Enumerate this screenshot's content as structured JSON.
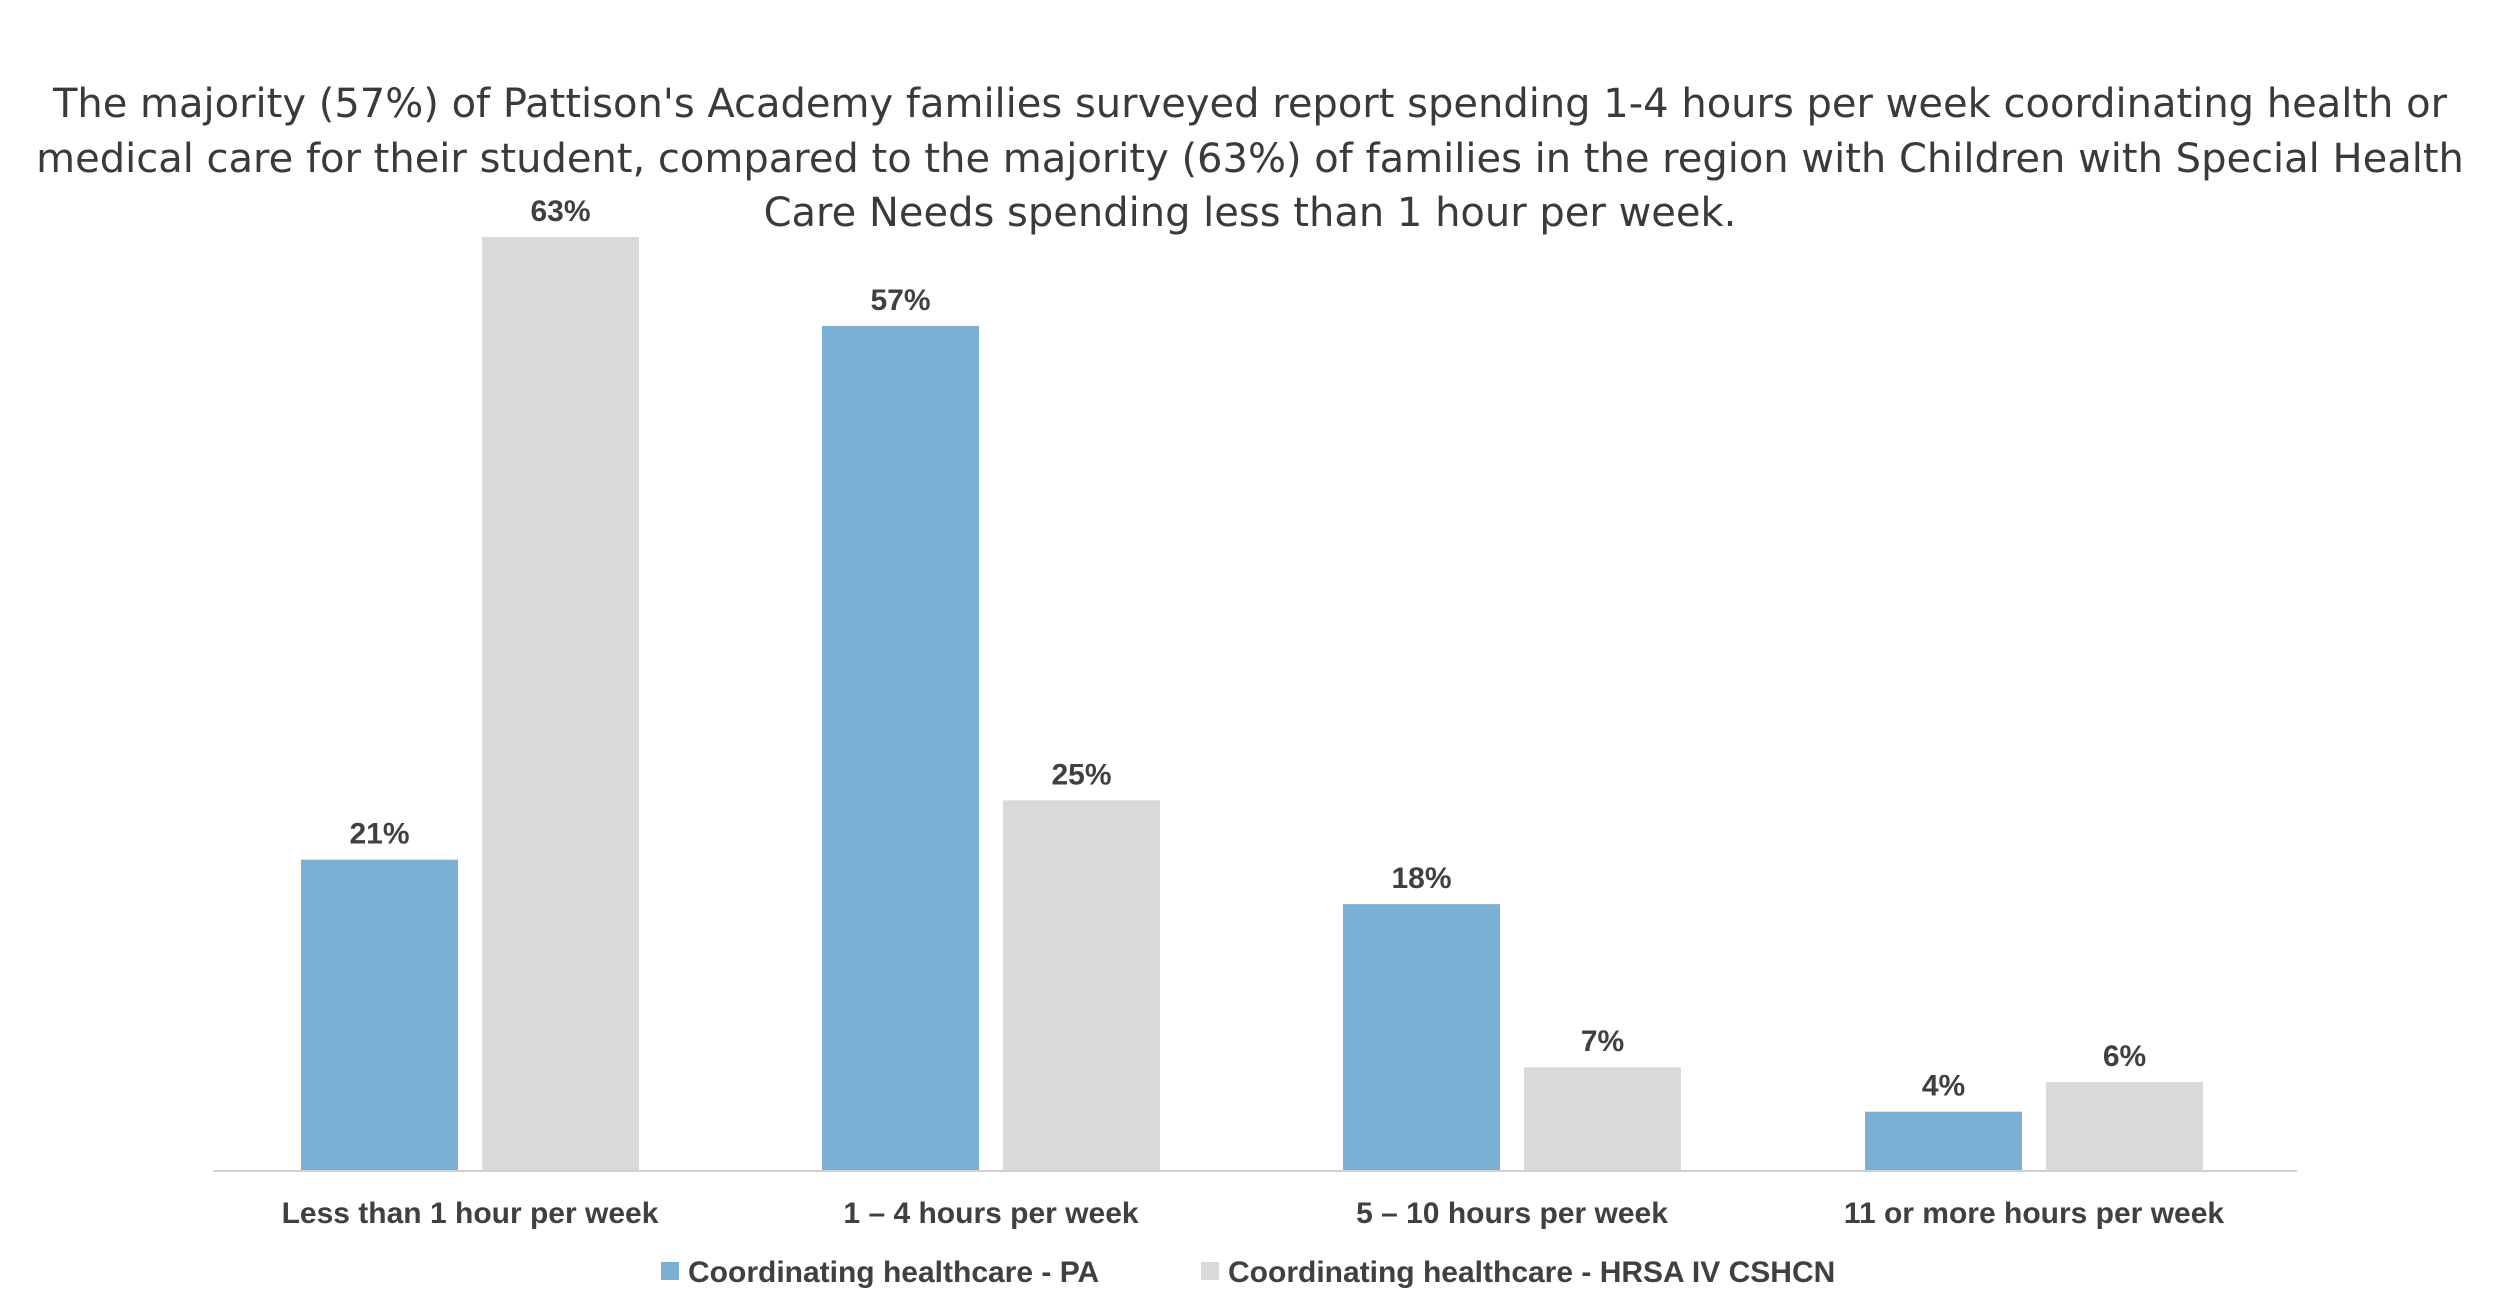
{
  "chart_data": {
    "type": "bar",
    "title_lines": [
      "The majority (57%) of Pattison's Academy families surveyed report spending 1-4 hours per week coordinating health or",
      "medical care for their student, compared to the majority (63%) of families in the region with Children with Special Health",
      "Care Needs spending less than 1 hour per week."
    ],
    "categories": [
      "Less than 1 hour per week",
      "1 – 4 hours per week",
      "5 – 10 hours per week",
      "11 or more hours per week"
    ],
    "series": [
      {
        "name": "Coordinating healthcare - PA",
        "color": "#7bafd4",
        "values": [
          21,
          57,
          18,
          4
        ],
        "labels": [
          "21%",
          "57%",
          "18%",
          "4%"
        ]
      },
      {
        "name": "Coordinating healthcare - HRSA IV CSHCN",
        "color": "#d9d9d9",
        "values": [
          63,
          25,
          7,
          6
        ],
        "labels": [
          "63%",
          "25%",
          "7%",
          "6%"
        ]
      }
    ],
    "ylim": [
      0,
      63
    ],
    "value_unit": "%",
    "grid": false,
    "legend_position": "bottom"
  }
}
